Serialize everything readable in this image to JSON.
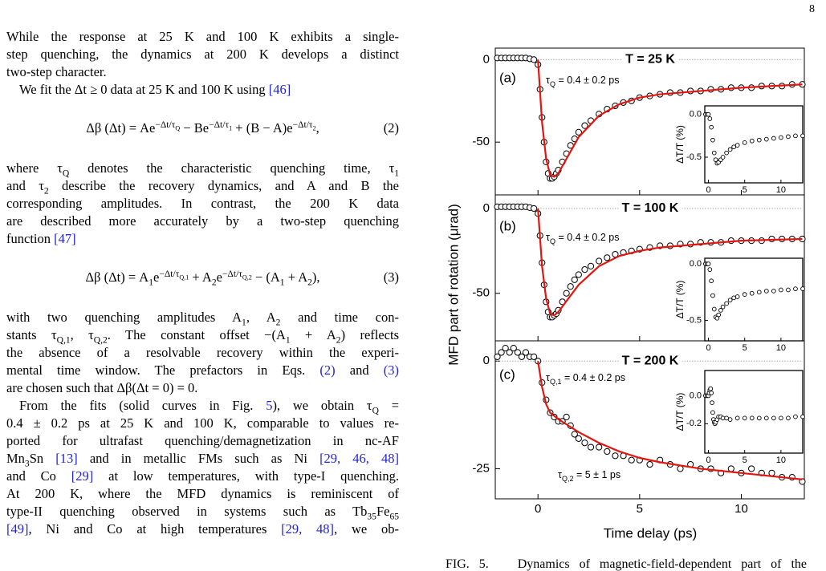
{
  "page_number": "8",
  "body": {
    "blocks": [
      {
        "lines": [
          "While the response at 25 K and 100 K exhibits a single-",
          "step quenching, the dynamics at 200 K develops a distinct",
          "two-step character."
        ]
      },
      {
        "paragraph": [
          [
            "We fit the Δt ≥ 0 data at 25 K and 100 K using ",
            {
              "ref": "[46]"
            }
          ]
        ]
      },
      {
        "equation": [
          "Δβ (Δt) = Ae",
          {
            "sup": [
              "−Δt/τ",
              {
                "sub": "Q"
              }
            ]
          },
          " − Be",
          {
            "sup": [
              "−Δt/τ",
              {
                "sub": "1"
              }
            ]
          },
          " + (B − A)e",
          {
            "sup": [
              "−Δt/τ",
              {
                "sub": "2"
              }
            ]
          },
          ","
        ],
        "number": "(2)"
      },
      {
        "lines": [
          [
            "where τ",
            {
              "sub": "Q"
            },
            " denotes the characteristic quenching time, τ",
            {
              "sub": "1"
            }
          ],
          [
            "and τ",
            {
              "sub": "2"
            },
            " describe the recovery dynamics, and A and B the"
          ],
          "corresponding amplitudes. In contrast, the 200 K data",
          "are described more accurately by a two-step quenching",
          [
            "function ",
            {
              "ref": "[47]"
            }
          ]
        ]
      },
      {
        "equation": [
          "Δβ (Δt) = A",
          {
            "sub": "1"
          },
          "e",
          {
            "sup": [
              "−Δt/τ",
              {
                "sub": "Q,1"
              }
            ]
          },
          " + A",
          {
            "sub": "2"
          },
          "e",
          {
            "sup": [
              "−Δt/τ",
              {
                "sub": "Q,2"
              }
            ]
          },
          " − (A",
          {
            "sub": "1"
          },
          " + A",
          {
            "sub": "2"
          },
          "),"
        ],
        "number": "(3)"
      },
      {
        "lines": [
          [
            "with two quenching amplitudes A",
            {
              "sub": "1"
            },
            ", A",
            {
              "sub": "2"
            },
            " and time con-"
          ],
          [
            "stants τ",
            {
              "sub": "Q,1"
            },
            ", τ",
            {
              "sub": "Q,2"
            },
            ". The constant offset −(A",
            {
              "sub": "1"
            },
            " + A",
            {
              "sub": "2"
            },
            ") reflects"
          ],
          "the absence of a resolvable recovery within the experi-",
          [
            "mental time window. The prefactors in Eqs. ",
            {
              "ref": "(2)"
            },
            " and ",
            {
              "ref": "(3)"
            }
          ],
          "are chosen such that Δβ(Δt = 0) = 0."
        ]
      },
      {
        "paragraph": [
          [
            "From the fits (solid curves in Fig. ",
            {
              "ref": "5"
            },
            "), we obtain τ",
            {
              "sub": "Q"
            },
            " ="
          ],
          "0.4 ± 0.2 ps at 25 K and 100 K, comparable to values re-",
          "ported for ultrafast quenching/demagnetization in nc-AF",
          [
            "Mn",
            {
              "sub": "3"
            },
            "Sn ",
            {
              "ref": "[13]"
            },
            " and in metallic FMs such as Ni ",
            {
              "ref": "[29, 46, 48]"
            }
          ],
          [
            "and Co ",
            {
              "ref": "[29]"
            },
            " at low temperatures, with type-I quenching."
          ],
          "At 200 K, where the MFD dynamics is reminiscent of",
          [
            "type-II quenching observed in systems such as Tb",
            {
              "sub": "35"
            },
            "Fe",
            {
              "sub": "65"
            }
          ],
          [
            {
              "ref": "[49]"
            },
            ", Ni and Co at high temperatures ",
            {
              "ref": "[29, 48]"
            },
            ", we ob-"
          ]
        ]
      }
    ]
  },
  "figure": {
    "y_axis_label": "MFD part of rotation (μrad)",
    "x_axis_label": "Time delay (ps)",
    "xlim": [
      -2.1,
      13.1
    ],
    "xticks": [
      0,
      5,
      10
    ],
    "zero_line": true,
    "data_color": "#000000",
    "fit_color": "#e3150f",
    "panels": [
      {
        "label": "(a)",
        "temperature": "T = 25 K",
        "annotations": [
          [
            "τ",
            {
              "sub": "Q"
            },
            " = 0.4 ± 0.2 ps"
          ]
        ],
        "ylim": [
          -82,
          7
        ],
        "yticks": [
          0,
          -50
        ],
        "data": {
          "x": [
            -2.0,
            -1.8,
            -1.6,
            -1.4,
            -1.2,
            -1.0,
            -0.8,
            -0.6,
            -0.4,
            -0.2,
            0,
            0.1,
            0.2,
            0.3,
            0.4,
            0.5,
            0.6,
            0.7,
            0.8,
            0.9,
            1.0,
            1.2,
            1.4,
            1.6,
            1.8,
            2.0,
            2.3,
            2.6,
            3.0,
            3.4,
            3.8,
            4.2,
            4.6,
            5.0,
            5.5,
            6.0,
            6.5,
            7.0,
            7.5,
            8.0,
            8.5,
            9.0,
            9.5,
            10.0,
            10.5,
            11.0,
            11.5,
            12.0,
            12.5,
            13.0
          ],
          "y": [
            1,
            1,
            1,
            1,
            1,
            1,
            1,
            1,
            0.5,
            0,
            -3,
            -18,
            -35,
            -50,
            -62,
            -69,
            -72,
            -72,
            -71,
            -69,
            -67,
            -62,
            -57,
            -52,
            -48,
            -44,
            -40,
            -37,
            -33,
            -30,
            -28,
            -26,
            -25,
            -23,
            -22,
            -21,
            -20,
            -20,
            -19,
            -19,
            -18,
            -18,
            -17,
            -17,
            -17,
            -16,
            -16,
            -16,
            -15,
            -15
          ]
        },
        "fit": {
          "x": [
            0,
            0.2,
            0.4,
            0.6,
            0.8,
            1.0,
            1.5,
            2,
            3,
            4,
            5,
            6,
            8,
            10,
            13
          ],
          "y": [
            0,
            -38,
            -60,
            -70,
            -71,
            -69,
            -58,
            -47,
            -34,
            -27,
            -23,
            -21,
            -19,
            -17,
            -15
          ]
        },
        "inset": {
          "y_axis_label": "ΔT/T (%)",
          "xlim": [
            -0.5,
            13
          ],
          "xticks": [
            0,
            5,
            10
          ],
          "ylim": [
            -0.8,
            0.1
          ],
          "yticks": [
            {
              "value": 0,
              "label": "0.0"
            },
            -0.5
          ],
          "data": {
            "x": [
              -0.4,
              -0.2,
              0,
              0.2,
              0.4,
              0.6,
              0.8,
              1.0,
              1.2,
              1.4,
              1.7,
              2,
              2.5,
              3,
              3.5,
              4,
              5,
              6,
              7,
              8,
              9,
              10,
              11,
              12,
              13
            ],
            "y": [
              0,
              0,
              0,
              -0.05,
              -0.15,
              -0.3,
              -0.45,
              -0.53,
              -0.57,
              -0.56,
              -0.53,
              -0.5,
              -0.45,
              -0.41,
              -0.38,
              -0.36,
              -0.33,
              -0.31,
              -0.3,
              -0.29,
              -0.28,
              -0.27,
              -0.26,
              -0.25,
              -0.25
            ]
          }
        }
      },
      {
        "label": "(b)",
        "temperature": "T = 100 K",
        "annotations": [
          [
            "τ",
            {
              "sub": "Q"
            },
            " = 0.4 ± 0.2 ps"
          ]
        ],
        "ylim": [
          -78,
          8
        ],
        "yticks": [
          0,
          -50
        ],
        "data": {
          "x": [
            -2.0,
            -1.8,
            -1.6,
            -1.4,
            -1.2,
            -1.0,
            -0.8,
            -0.6,
            -0.4,
            -0.2,
            0,
            0.1,
            0.2,
            0.3,
            0.4,
            0.5,
            0.6,
            0.7,
            0.8,
            0.9,
            1.0,
            1.2,
            1.4,
            1.6,
            1.8,
            2.0,
            2.3,
            2.6,
            3.0,
            3.4,
            3.8,
            4.2,
            4.6,
            5.0,
            5.5,
            6.0,
            6.5,
            7.0,
            7.5,
            8.0,
            8.5,
            9.0,
            9.5,
            10.0,
            10.5,
            11.0,
            11.5,
            12.0,
            12.5,
            13.0
          ],
          "y": [
            1,
            1,
            1,
            1,
            1,
            1,
            1,
            1,
            0.5,
            0,
            -3,
            -16,
            -32,
            -45,
            -55,
            -61,
            -64,
            -64,
            -63,
            -62,
            -60,
            -55,
            -50,
            -46,
            -42,
            -39,
            -36,
            -34,
            -31,
            -29,
            -27,
            -26,
            -25,
            -24,
            -23,
            -22,
            -22,
            -21,
            -21,
            -20,
            -20,
            -20,
            -19,
            -19,
            -19,
            -19,
            -18,
            -18,
            -18,
            -18
          ]
        },
        "fit": {
          "x": [
            0,
            0.2,
            0.4,
            0.6,
            0.8,
            1.0,
            1.5,
            2,
            3,
            4,
            5,
            6,
            8,
            10,
            13
          ],
          "y": [
            0,
            -34,
            -53,
            -62,
            -63,
            -61,
            -53,
            -45,
            -34,
            -28,
            -25,
            -23,
            -21,
            -19,
            -18
          ]
        },
        "inset": {
          "y_axis_label": "ΔT/T (%)",
          "xlim": [
            -0.5,
            13
          ],
          "xticks": [
            0,
            5,
            10
          ],
          "ylim": [
            -0.68,
            0.05
          ],
          "yticks": [
            {
              "value": 0,
              "label": "0.0"
            },
            -0.5
          ],
          "data": {
            "x": [
              -0.4,
              -0.2,
              0,
              0.2,
              0.4,
              0.6,
              0.8,
              1.0,
              1.2,
              1.4,
              1.7,
              2,
              2.5,
              3,
              3.5,
              4,
              5,
              6,
              7,
              8,
              9,
              10,
              11,
              12,
              13
            ],
            "y": [
              0,
              0,
              0,
              -0.05,
              -0.15,
              -0.28,
              -0.4,
              -0.47,
              -0.48,
              -0.45,
              -0.41,
              -0.38,
              -0.35,
              -0.32,
              -0.3,
              -0.29,
              -0.27,
              -0.26,
              -0.25,
              -0.24,
              -0.24,
              -0.23,
              -0.23,
              -0.22,
              -0.22
            ]
          }
        }
      },
      {
        "label": "(c)",
        "temperature": "T = 200 K",
        "annotations": [
          [
            "τ",
            {
              "sub": "Q,1"
            },
            " = 0.4 ± 0.2 ps"
          ],
          [
            "τ",
            {
              "sub": "Q,2"
            },
            " = 5 ± 1 ps"
          ]
        ],
        "ylim": [
          -32,
          4.7
        ],
        "yticks": [
          0,
          -25
        ],
        "data": {
          "x": [
            -2.0,
            -1.8,
            -1.6,
            -1.4,
            -1.2,
            -1.0,
            -0.8,
            -0.6,
            -0.4,
            -0.2,
            0,
            0.2,
            0.4,
            0.6,
            0.8,
            1.0,
            1.2,
            1.4,
            1.6,
            1.8,
            2.0,
            2.3,
            2.6,
            3.0,
            3.4,
            3.8,
            4.2,
            4.6,
            5.0,
            5.5,
            6.0,
            6.5,
            7.0,
            7.5,
            8.0,
            8.5,
            9.0,
            9.5,
            10.0,
            10.5,
            11.0,
            11.5,
            12.0,
            12.5,
            13.0
          ],
          "y": [
            1,
            2,
            3,
            2,
            3,
            2,
            1,
            2,
            1,
            1,
            0,
            -5,
            -9,
            -12,
            -13,
            -14,
            -14,
            -13,
            -15,
            -17,
            -18,
            -19,
            -20,
            -20,
            -21,
            -22,
            -22,
            -23,
            -23,
            -24,
            -23,
            -24,
            -25,
            -24,
            -25,
            -25,
            -26,
            -25,
            -26,
            -25,
            -26,
            -26,
            -27,
            -27,
            -28
          ]
        },
        "fit": {
          "x": [
            0,
            0.2,
            0.4,
            0.6,
            1,
            1.5,
            2,
            3,
            4,
            5,
            6,
            8,
            10,
            13
          ],
          "y": [
            0,
            -6,
            -10,
            -12,
            -13.5,
            -15,
            -16.5,
            -19,
            -21,
            -22.5,
            -23.5,
            -25,
            -26,
            -27.5
          ]
        },
        "inset": {
          "y_axis_label": "ΔT/T (%)",
          "xlim": [
            -0.5,
            13
          ],
          "xticks": [
            0,
            5,
            10
          ],
          "ylim": [
            -0.41,
            0.18
          ],
          "yticks": [
            {
              "value": 0,
              "label": "0.0"
            },
            -0.2
          ],
          "data": {
            "x": [
              -0.4,
              -0.2,
              0,
              0.1,
              0.2,
              0.3,
              0.4,
              0.5,
              0.6,
              0.7,
              0.8,
              0.9,
              1.0,
              1.2,
              1.4,
              1.7,
              2,
              2.5,
              3,
              4,
              5,
              6,
              7,
              8,
              9,
              10,
              11,
              12,
              13
            ],
            "y": [
              0,
              0,
              0,
              0.02,
              0.04,
              0.05,
              0.02,
              -0.05,
              -0.12,
              -0.17,
              -0.19,
              -0.2,
              -0.19,
              -0.17,
              -0.15,
              -0.15,
              -0.16,
              -0.16,
              -0.17,
              -0.16,
              -0.16,
              -0.16,
              -0.16,
              -0.16,
              -0.16,
              -0.16,
              -0.16,
              -0.15,
              -0.15
            ]
          }
        }
      }
    ]
  },
  "caption": "FIG. 5.   Dynamics of magnetic-field-dependent part of the"
}
